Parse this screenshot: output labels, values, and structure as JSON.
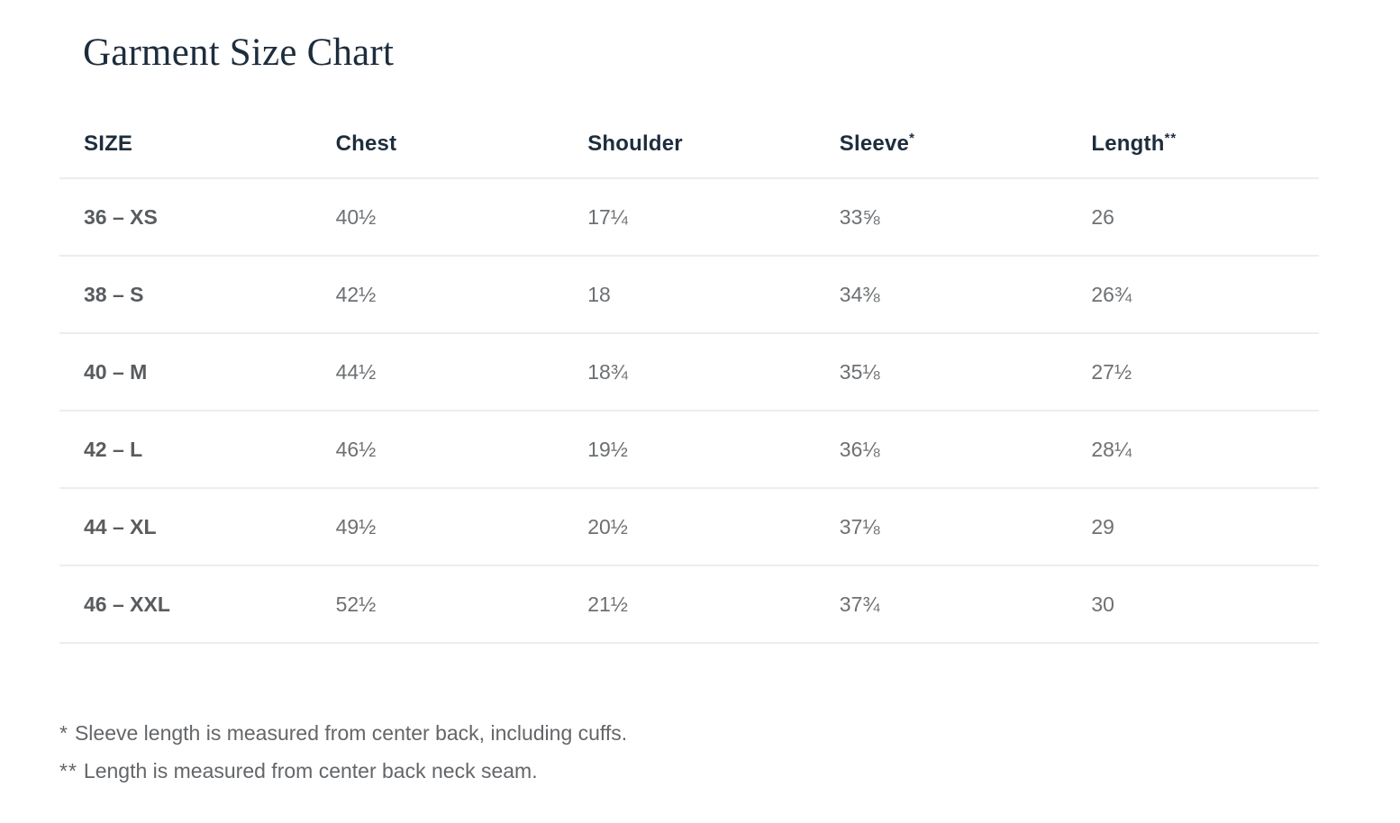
{
  "page": {
    "title": "Garment Size Chart"
  },
  "table": {
    "columns": [
      {
        "label": "SIZE",
        "sup": ""
      },
      {
        "label": "Chest",
        "sup": ""
      },
      {
        "label": "Shoulder",
        "sup": ""
      },
      {
        "label": "Sleeve",
        "sup": "*"
      },
      {
        "label": "Length",
        "sup": "**"
      }
    ],
    "rows": [
      {
        "size": "36 – XS",
        "chest": "40½",
        "shoulder": "17¼",
        "sleeve": "33⅝",
        "length": "26"
      },
      {
        "size": "38 – S",
        "chest": "42½",
        "shoulder": "18",
        "sleeve": "34⅜",
        "length": "26¾"
      },
      {
        "size": "40 – M",
        "chest": "44½",
        "shoulder": "18¾",
        "sleeve": "35⅛",
        "length": "27½"
      },
      {
        "size": "42 – L",
        "chest": "46½",
        "shoulder": "19½",
        "sleeve": "36⅛",
        "length": "28¼"
      },
      {
        "size": "44 – XL",
        "chest": "49½",
        "shoulder": "20½",
        "sleeve": "37⅛",
        "length": "29"
      },
      {
        "size": "46 – XXL",
        "chest": "52½",
        "shoulder": "21½",
        "sleeve": "37¾",
        "length": "30"
      }
    ]
  },
  "footnotes": [
    {
      "marker": "*",
      "text": "Sleeve length is measured from center back, including cuffs."
    },
    {
      "marker": "**",
      "text": "Length is measured from center back neck seam."
    }
  ],
  "colors": {
    "background": "#ffffff",
    "heading_text": "#1e2d3d",
    "data_text": "#6d7073",
    "row_label_text": "#595c5f",
    "divider": "#ededed",
    "footnote_text": "#636669"
  }
}
